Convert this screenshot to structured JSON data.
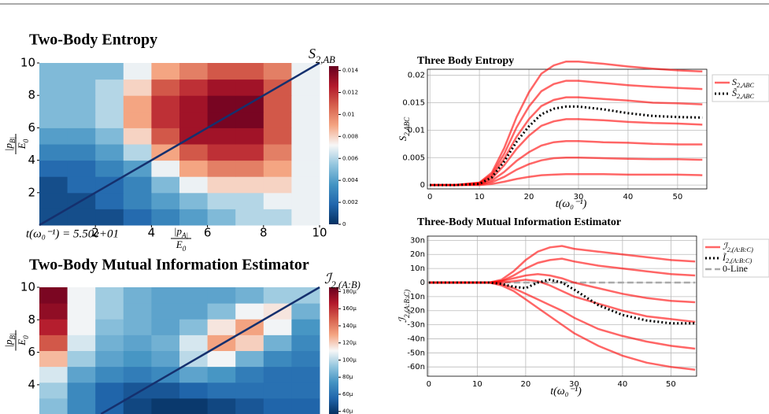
{
  "chart_data": [
    {
      "type": "heatmap",
      "title": "Two-Body Entropy",
      "colorbar_label": "S2,AB",
      "annotation": "t(ω₀⁻¹) = 5.50e+01",
      "x_label": {
        "numerator": "|pA|",
        "denominator": "E0"
      },
      "y_label": {
        "numerator": "|pB|",
        "denominator": "E0"
      },
      "xlim": [
        0,
        10
      ],
      "ylim": [
        0,
        10
      ],
      "xticks": [
        2,
        4,
        6,
        8,
        10
      ],
      "yticks": [
        2,
        4,
        6,
        8,
        10
      ],
      "clim": [
        0,
        0.0144
      ],
      "cticks": [
        0,
        0.002,
        0.004,
        0.006,
        0.008,
        0.01,
        0.012,
        0.014
      ],
      "colormap": [
        "#053061",
        "#2166ac",
        "#4393c3",
        "#92c5de",
        "#f7f7f7",
        "#f4a582",
        "#d6604d",
        "#b2182b",
        "#67001f"
      ],
      "z": [
        [
          0.001,
          0.001,
          0.001,
          0.002,
          0.003,
          0.004,
          0.005,
          0.006,
          0.006,
          0.007
        ],
        [
          0.001,
          0.001,
          0.002,
          0.003,
          0.004,
          0.005,
          0.006,
          0.006,
          0.007,
          0.007
        ],
        [
          0.001,
          0.002,
          0.002,
          0.003,
          0.005,
          0.007,
          0.008,
          0.008,
          0.008,
          0.007
        ],
        [
          0.002,
          0.002,
          0.003,
          0.004,
          0.007,
          0.009,
          0.01,
          0.01,
          0.009,
          0.007
        ],
        [
          0.003,
          0.003,
          0.004,
          0.006,
          0.009,
          0.011,
          0.012,
          0.012,
          0.01,
          0.007
        ],
        [
          0.004,
          0.004,
          0.005,
          0.008,
          0.011,
          0.013,
          0.013,
          0.013,
          0.011,
          0.007
        ],
        [
          0.005,
          0.005,
          0.006,
          0.009,
          0.012,
          0.013,
          0.014,
          0.014,
          0.011,
          0.007
        ],
        [
          0.005,
          0.005,
          0.006,
          0.009,
          0.012,
          0.013,
          0.014,
          0.014,
          0.011,
          0.007
        ],
        [
          0.005,
          0.005,
          0.006,
          0.008,
          0.011,
          0.012,
          0.013,
          0.013,
          0.011,
          0.007
        ],
        [
          0.005,
          0.005,
          0.005,
          0.007,
          0.009,
          0.01,
          0.011,
          0.011,
          0.01,
          0.007
        ]
      ]
    },
    {
      "type": "heatmap",
      "title": "Two-Body Mutual Information Estimator",
      "colorbar_label": "ℐ2,(A:B)",
      "y_label": {
        "numerator": "|pB|",
        "denominator": "E0"
      },
      "xlim": [
        0,
        10
      ],
      "ylim": [
        2.2,
        10
      ],
      "yticks": [
        4,
        6,
        8,
        10
      ],
      "clim": [
        3.7e-05,
        0.000185
      ],
      "cticks": [
        {
          "value": 4e-05,
          "label": "40µ"
        },
        {
          "value": 6e-05,
          "label": "60µ"
        },
        {
          "value": 8e-05,
          "label": "80µ"
        },
        {
          "value": 0.0001,
          "label": "100µ"
        },
        {
          "value": 0.00012,
          "label": "120µ"
        },
        {
          "value": 0.00014,
          "label": "140µ"
        },
        {
          "value": 0.00016,
          "label": "160µ"
        },
        {
          "value": 0.00018,
          "label": "180µ"
        }
      ],
      "colormap": [
        "#053061",
        "#2166ac",
        "#4393c3",
        "#92c5de",
        "#f7f7f7",
        "#f4a582",
        "#d6604d",
        "#b2182b",
        "#67001f"
      ],
      "z": [
        [
          9e-05,
          7e-05,
          5.5e-05,
          4.5e-05,
          4e-05,
          4e-05,
          4.5e-05,
          5e-05,
          5.5e-05,
          5.5e-05
        ],
        [
          9.5e-05,
          7e-05,
          5.5e-05,
          5e-05,
          5e-05,
          5.5e-05,
          6e-05,
          6e-05,
          6e-05,
          6e-05
        ],
        [
          0.000105,
          8e-05,
          7e-05,
          6.5e-05,
          7e-05,
          8e-05,
          7.5e-05,
          6.5e-05,
          6e-05,
          6e-05
        ],
        [
          0.000125,
          9.5e-05,
          8e-05,
          7.5e-05,
          8e-05,
          0.0001,
          0.00011,
          8.5e-05,
          7e-05,
          6.5e-05
        ],
        [
          0.00015,
          0.000105,
          8.5e-05,
          8e-05,
          8.5e-05,
          0.000105,
          0.00013,
          0.00012,
          8.5e-05,
          7e-05
        ],
        [
          0.000165,
          0.00011,
          9e-05,
          8.5e-05,
          8e-05,
          9e-05,
          0.000115,
          0.00013,
          0.00011,
          7.5e-05
        ],
        [
          0.000175,
          0.00011,
          9.5e-05,
          8.5e-05,
          8e-05,
          8e-05,
          9e-05,
          0.00011,
          0.000115,
          8.5e-05
        ],
        [
          0.00018,
          0.00011,
          9.5e-05,
          8.5e-05,
          8e-05,
          8e-05,
          8e-05,
          8.5e-05,
          9.5e-05,
          9.5e-05
        ]
      ]
    },
    {
      "type": "line",
      "title": "Three Body Entropy",
      "y_label": "S2,ABC",
      "x_label": "t(ω₀⁻¹)",
      "grid": true,
      "legend": "right",
      "xlim": [
        -0.5,
        55.9
      ],
      "ylim": [
        -0.0007,
        0.0211
      ],
      "xticks": [
        0,
        10,
        20,
        30,
        40,
        50
      ],
      "yticks": [
        0,
        0.005,
        0.01,
        0.015,
        0.02
      ],
      "x": [
        0,
        5,
        10,
        12.5,
        15,
        17.5,
        20,
        22.5,
        25,
        27.5,
        30,
        35,
        40,
        45,
        50,
        55
      ],
      "series": [
        {
          "name": "S2,ABC",
          "color": "#ff0000",
          "dash": "solid",
          "values": [
            [
              0,
              0,
              0.00045,
              0.00225,
              0.00675,
              0.0124,
              0.0169,
              0.0203,
              0.0218,
              0.0225,
              0.0225,
              0.0221,
              0.0216,
              0.0212,
              0.0209,
              0.0207
            ],
            [
              0,
              0,
              0.0004,
              0.0019,
              0.0057,
              0.0105,
              0.0143,
              0.0171,
              0.0184,
              0.019,
              0.019,
              0.0186,
              0.0182,
              0.0179,
              0.0177,
              0.0175
            ],
            [
              0,
              0,
              0.0003,
              0.0016,
              0.0048,
              0.0088,
              0.012,
              0.0144,
              0.0155,
              0.016,
              0.016,
              0.0157,
              0.0154,
              0.015,
              0.0149,
              0.0147
            ],
            [
              0,
              0,
              0.0002,
              0.0012,
              0.0036,
              0.0066,
              0.009,
              0.0108,
              0.0116,
              0.012,
              0.012,
              0.0118,
              0.0115,
              0.0113,
              0.0112,
              0.011
            ],
            [
              0,
              0,
              0.0002,
              0.0008,
              0.0024,
              0.0044,
              0.006,
              0.0072,
              0.0078,
              0.008,
              0.008,
              0.0078,
              0.0077,
              0.0075,
              0.0074,
              0.0074
            ],
            [
              0,
              0,
              0.0001,
              0.0005,
              0.0015,
              0.0028,
              0.0038,
              0.0045,
              0.0049,
              0.005,
              0.005,
              0.0049,
              0.0048,
              0.0047,
              0.0047,
              0.0046
            ],
            [
              0,
              0,
              0,
              0.0002,
              0.0006,
              0.0011,
              0.0015,
              0.0018,
              0.0019,
              0.002,
              0.002,
              0.002,
              0.0019,
              0.0019,
              0.0019,
              0.0018
            ]
          ]
        },
        {
          "name": "S̃2,ABC",
          "color": "#000000",
          "dash": "dotted",
          "values": [
            0,
            0,
            0.0002,
            0.0014,
            0.0043,
            0.0079,
            0.0107,
            0.0129,
            0.0139,
            0.0143,
            0.0143,
            0.0138,
            0.0131,
            0.0126,
            0.0124,
            0.0123
          ]
        }
      ]
    },
    {
      "type": "line",
      "title": "Three-Body Mutual Information Estimator",
      "y_label": "ℐ2,(A:B:C)",
      "x_label": "t(ω₀⁻¹)",
      "grid": true,
      "legend": "right",
      "xlim": [
        -0.3,
        55.3
      ],
      "ylim": [
        -6.66e-08,
        3.3e-08
      ],
      "xticks": [
        0,
        10,
        20,
        30,
        40,
        50
      ],
      "yticks": [
        {
          "value": -6e-08,
          "label": "-60n"
        },
        {
          "value": -5e-08,
          "label": "-50n"
        },
        {
          "value": -4e-08,
          "label": "-40n"
        },
        {
          "value": -3e-08,
          "label": "-30n"
        },
        {
          "value": -2e-08,
          "label": "-20n"
        },
        {
          "value": -1e-08,
          "label": "-10n"
        },
        0,
        {
          "value": 1e-08,
          "label": "10n"
        },
        {
          "value": 2e-08,
          "label": "20n"
        },
        {
          "value": 3e-08,
          "label": "30n"
        }
      ],
      "x": [
        0,
        5,
        10,
        12.5,
        15,
        17.5,
        20,
        22.5,
        25,
        27.5,
        30,
        35,
        40,
        45,
        50,
        55
      ],
      "series": [
        {
          "name": "ℐ2,(A:B:C)",
          "color": "#ff0000",
          "dash": "solid",
          "values": [
            [
              0,
              0,
              0,
              0,
              2e-09,
              8e-09,
              1.6e-08,
              2.2e-08,
              2.5e-08,
              2.6e-08,
              2.4e-08,
              2.2e-08,
              2e-08,
              1.8e-08,
              1.6e-08,
              1.5e-08
            ],
            [
              0,
              0,
              0,
              0,
              1e-09,
              5e-09,
              1e-08,
              1.4e-08,
              1.6e-08,
              1.7e-08,
              1.5e-08,
              1.2e-08,
              1e-08,
              8e-09,
              6e-09,
              5e-09
            ],
            [
              0,
              0,
              0,
              0,
              1e-09,
              3e-09,
              5e-09,
              6e-09,
              5e-09,
              3e-09,
              0,
              -4e-09,
              -8e-09,
              -1.1e-08,
              -1.3e-08,
              -1.4e-08
            ],
            [
              0,
              0,
              0,
              0,
              0,
              1e-09,
              2e-09,
              1e-09,
              -2e-09,
              -6e-09,
              -1e-08,
              -1.5e-08,
              -2e-08,
              -2.4e-08,
              -2.6e-08,
              -2.8e-08
            ],
            [
              0,
              0,
              0,
              0,
              -1e-09,
              -4e-09,
              -8e-09,
              -1.2e-08,
              -1.6e-08,
              -2e-08,
              -2.5e-08,
              -3.3e-08,
              -3.8e-08,
              -4.2e-08,
              -4.5e-08,
              -4.7e-08
            ],
            [
              0,
              0,
              0,
              0,
              -2e-09,
              -6e-09,
              -1.2e-08,
              -1.8e-08,
              -2.4e-08,
              -3e-08,
              -3.6e-08,
              -4.5e-08,
              -5.2e-08,
              -5.7e-08,
              -6e-08,
              -6.2e-08
            ]
          ]
        },
        {
          "name": "Ĩ2,(A:B:C)",
          "color": "#000000",
          "dash": "dotted",
          "values": [
            0,
            0,
            0,
            0,
            -1e-09,
            -3e-09,
            -4e-09,
            0,
            2e-09,
            0,
            -5e-09,
            -1.6e-08,
            -2.3e-08,
            -2.7e-08,
            -2.9e-08,
            -2.9e-08
          ]
        },
        {
          "name": "0-Line",
          "color": "#aaaaaa",
          "dash": "dashed",
          "values": [
            0,
            0,
            0,
            0,
            0,
            0,
            0,
            0,
            0,
            0,
            0,
            0,
            0,
            0,
            0,
            0
          ]
        }
      ]
    }
  ]
}
